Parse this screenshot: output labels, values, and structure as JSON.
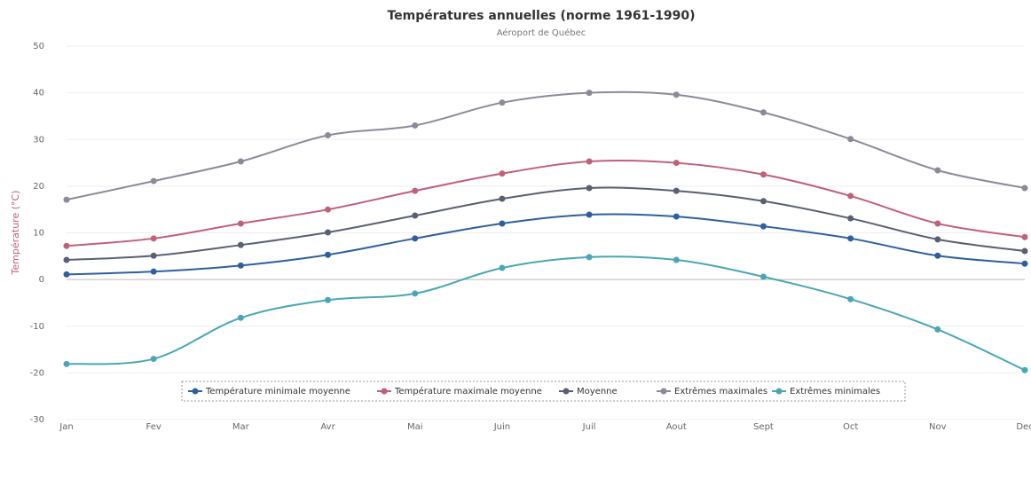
{
  "chart_data": {
    "type": "line",
    "title": "Températures annuelles (norme 1961-1990)",
    "subtitle": "Aéroport de Québec",
    "y_label": "Température (°C)",
    "categories": [
      "Jan",
      "Fev",
      "Mar",
      "Avr",
      "Mai",
      "Juin",
      "Juil",
      "Aout",
      "Sept",
      "Oct",
      "Nov",
      "Dec"
    ],
    "ylim": [
      -30,
      50
    ],
    "yticks": [
      -30,
      -20,
      -10,
      0,
      10,
      20,
      30,
      40,
      50
    ],
    "grid": true,
    "legend": "bottom",
    "series": [
      {
        "name": "Température minimale moyenne",
        "color": "#2f5f9e",
        "values": [
          1.1,
          1.7,
          3,
          5.3,
          8.8,
          12,
          13.9,
          13.5,
          11.4,
          8.8,
          5.1,
          3.4
        ]
      },
      {
        "name": "Température maximale moyenne",
        "color": "#c0607a",
        "values": [
          7.2,
          8.8,
          12,
          15,
          19,
          22.7,
          25.3,
          25,
          22.5,
          17.9,
          12,
          9.1
        ]
      },
      {
        "name": "Moyenne",
        "color": "#5a5f73",
        "values": [
          4.2,
          5.1,
          7.4,
          10.1,
          13.7,
          17.3,
          19.6,
          19,
          16.8,
          13.1,
          8.6,
          6.1
        ]
      },
      {
        "name": "Extrêmes maximales",
        "color": "#8a8a99",
        "values": [
          17.1,
          21.1,
          25.3,
          30.9,
          33,
          37.9,
          40,
          39.6,
          35.8,
          30.1,
          23.4,
          19.6
        ]
      },
      {
        "name": "Extrêmes minimales",
        "color": "#4aa6b5",
        "values": [
          -18.1,
          -17,
          -8.2,
          -4.4,
          -3,
          2.5,
          4.8,
          4.2,
          0.6,
          -4.2,
          -10.7,
          -19.4
        ]
      }
    ]
  }
}
